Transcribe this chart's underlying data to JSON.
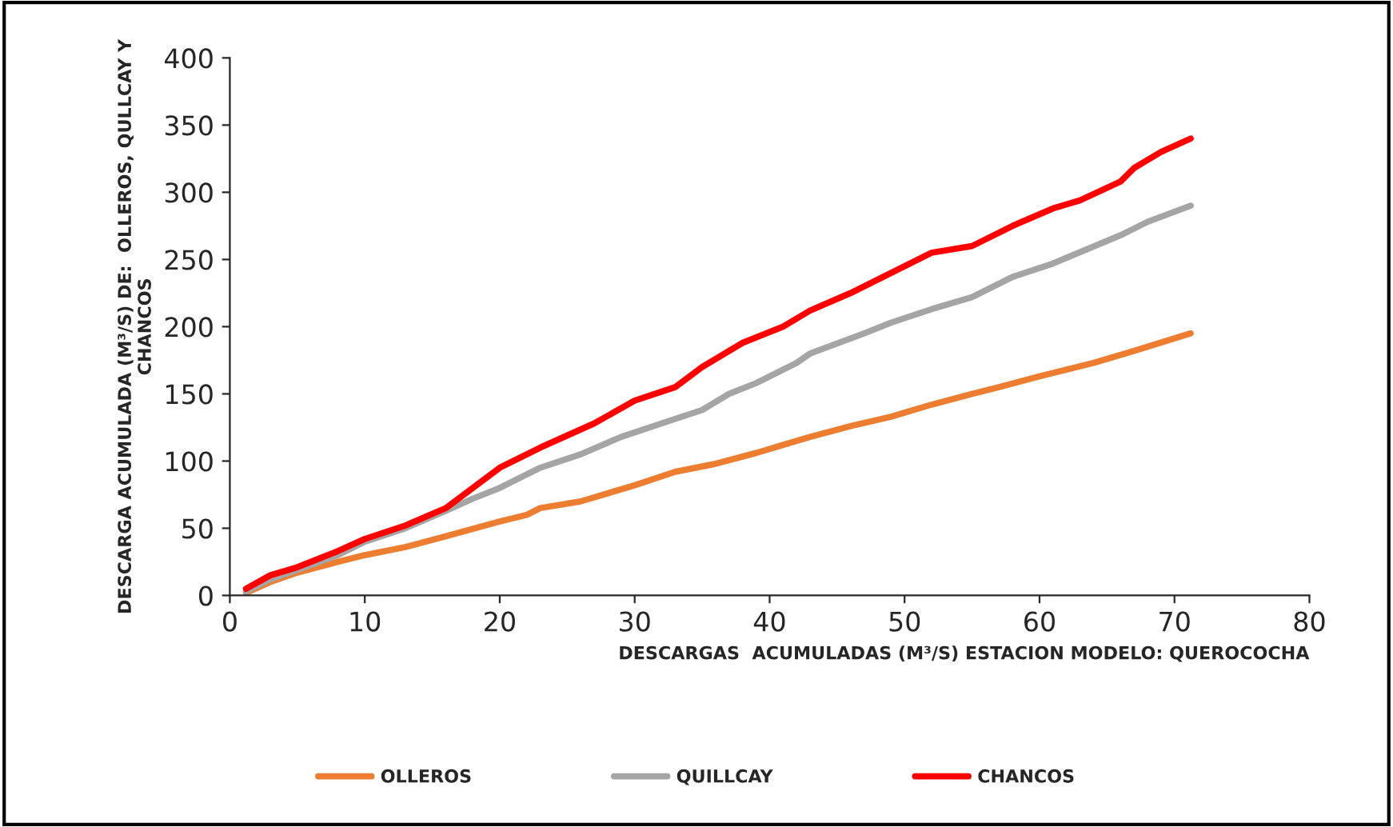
{
  "chart_data": {
    "type": "line",
    "xlabel": "DESCARGAS  ACUMULADAS (M³/S) ESTACION MODELO: QUEROCOCHA",
    "ylabel": "DESCARGA ACUMULADA (M³/S) DE:  OLLEROS, QULLCAY Y CHANCOS",
    "xlim": [
      0,
      80
    ],
    "xticks": [
      0,
      10,
      20,
      30,
      40,
      50,
      60,
      70,
      80
    ],
    "ylim": [
      0,
      400
    ],
    "yticks": [
      0,
      50,
      100,
      150,
      200,
      250,
      300,
      350,
      400
    ],
    "grid": false,
    "legend": "bottom",
    "marker": "none",
    "line_style": "solid",
    "series": [
      {
        "name": "OLLEROS",
        "color": "#ed7d31",
        "x": [
          1.2,
          3,
          5,
          8,
          10,
          13,
          16,
          20,
          22,
          23,
          26,
          30,
          33,
          36,
          39,
          41,
          43,
          46,
          49,
          52,
          55,
          57,
          60,
          64,
          67,
          71.2
        ],
        "values": [
          2,
          10,
          17,
          25,
          30,
          36,
          44,
          55,
          60,
          65,
          70,
          82,
          92,
          98,
          106,
          112,
          118,
          126,
          133,
          142,
          150,
          155,
          163,
          173,
          182,
          195
        ]
      },
      {
        "name": "QUILLCAY",
        "color": "#a5a5a5",
        "x": [
          1.2,
          3,
          5,
          8,
          10,
          13,
          16,
          18,
          20,
          23,
          26,
          29,
          32,
          35,
          37,
          39,
          42,
          43,
          47,
          49,
          52,
          55,
          58,
          61,
          66,
          68,
          71.2
        ],
        "values": [
          3,
          12,
          19,
          30,
          40,
          50,
          63,
          72,
          80,
          95,
          105,
          118,
          128,
          138,
          150,
          158,
          173,
          180,
          195,
          203,
          213,
          222,
          237,
          247,
          268,
          278,
          290
        ]
      },
      {
        "name": "CHANCOS",
        "color": "#ff0000",
        "x": [
          1.2,
          3,
          5,
          8,
          10,
          13,
          16,
          18,
          20,
          23,
          27,
          30,
          33,
          35,
          38,
          41,
          43,
          46,
          49,
          52,
          55,
          58,
          61,
          63,
          66,
          67,
          69,
          71.2
        ],
        "values": [
          5,
          15,
          21,
          33,
          42,
          52,
          65,
          80,
          95,
          110,
          128,
          145,
          155,
          170,
          188,
          200,
          212,
          225,
          240,
          255,
          260,
          275,
          288,
          294,
          308,
          318,
          330,
          340
        ]
      }
    ]
  }
}
